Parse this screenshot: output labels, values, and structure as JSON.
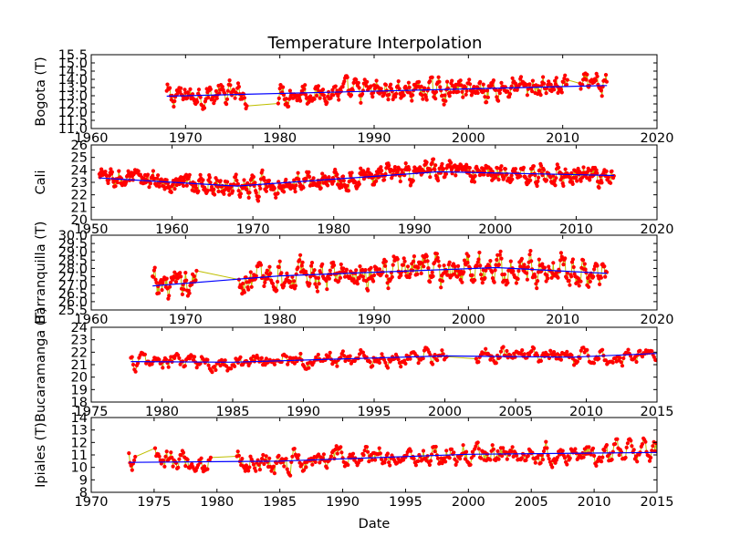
{
  "figure_title": "Temperature Interpolation",
  "chart_data": [
    {
      "type": "line",
      "ylabel": "Bogota (T)",
      "xlim": [
        1960,
        2020
      ],
      "ylim": [
        11.0,
        15.5
      ],
      "xticks": [
        1960,
        1970,
        1980,
        1990,
        2000,
        2010,
        2020
      ],
      "yticks": [
        11.0,
        11.5,
        12.0,
        12.5,
        13.0,
        13.5,
        14.0,
        14.5,
        15.0,
        15.5
      ],
      "ytick_labels": [
        "11.0",
        "11.5",
        "12.0",
        "12.5",
        "13.0",
        "13.5",
        "14.0",
        "14.5",
        "15.0",
        "15.5"
      ],
      "xtick_labels": [
        "1960",
        "1970",
        "1980",
        "1990",
        "2000",
        "2010",
        "2020"
      ],
      "data_range": [
        1968.0,
        2014.7
      ],
      "baseline": 13.1,
      "amplitude": 0.45,
      "min_val": 11.1,
      "max_val": 15.0,
      "gaps": [
        [
          1976.5,
          1979.8
        ],
        [
          2010.5,
          2011.8
        ]
      ],
      "trend": {
        "x": [
          1968.0,
          2014.7
        ],
        "y": [
          12.97,
          13.62
        ]
      },
      "colors": {
        "points": "#ff0000",
        "line": "#bfbf00",
        "trend": "#0000ff"
      }
    },
    {
      "type": "line",
      "ylabel": "Cali",
      "xlim": [
        1950,
        2020
      ],
      "ylim": [
        20,
        26
      ],
      "xticks": [
        1950,
        1960,
        1970,
        1980,
        1990,
        2000,
        2010,
        2020
      ],
      "yticks": [
        20,
        21,
        22,
        23,
        24,
        25,
        26
      ],
      "ytick_labels": [
        "20",
        "21",
        "22",
        "23",
        "24",
        "25",
        "26"
      ],
      "xtick_labels": [
        "1950",
        "1960",
        "1970",
        "1980",
        "1990",
        "2000",
        "2010",
        "2020"
      ],
      "data_range": [
        1951.0,
        2014.7
      ],
      "baseline": 23.2,
      "amplitude": 0.55,
      "min_val": 20.7,
      "max_val": 25.6,
      "gaps": [],
      "trend": {
        "x": [
          1951.0,
          1968.0,
          1993.0,
          2014.7
        ],
        "y": [
          23.35,
          22.7,
          23.85,
          23.55
        ]
      },
      "colors": {
        "points": "#ff0000",
        "line": "#bfbf00",
        "trend": "#0000ff"
      }
    },
    {
      "type": "line",
      "ylabel": "Barranquilla (T)",
      "xlim": [
        1960,
        2020
      ],
      "ylim": [
        25.5,
        30.0
      ],
      "xticks": [
        1960,
        1970,
        1980,
        1990,
        2000,
        2010,
        2020
      ],
      "yticks": [
        25.5,
        26.0,
        26.5,
        27.0,
        27.5,
        28.0,
        28.5,
        29.0,
        29.5,
        30.0
      ],
      "ytick_labels": [
        "25.5",
        "26.0",
        "26.5",
        "27.0",
        "27.5",
        "28.0",
        "28.5",
        "29.0",
        "29.5",
        "30.0"
      ],
      "xtick_labels": [
        "1960",
        "1970",
        "1980",
        "1990",
        "2000",
        "2010",
        "2020"
      ],
      "data_range": [
        1966.5,
        2014.7
      ],
      "baseline": 27.6,
      "amplitude": 0.6,
      "min_val": 25.6,
      "max_val": 29.7,
      "gaps": [
        [
          1971.2,
          1975.6
        ]
      ],
      "trend": {
        "x": [
          1966.5,
          1980.0,
          2003.0,
          2014.7
        ],
        "y": [
          26.95,
          27.55,
          28.05,
          27.7
        ]
      },
      "colors": {
        "points": "#ff0000",
        "line": "#bfbf00",
        "trend": "#0000ff"
      }
    },
    {
      "type": "line",
      "ylabel": "Bucaramanga (T)",
      "xlim": [
        1975,
        2015
      ],
      "ylim": [
        18,
        24
      ],
      "xticks": [
        1975,
        1980,
        1985,
        1990,
        1995,
        2000,
        2005,
        2010,
        2015
      ],
      "yticks": [
        18,
        19,
        20,
        21,
        22,
        23,
        24
      ],
      "ytick_labels": [
        "18",
        "19",
        "20",
        "21",
        "22",
        "23",
        "24"
      ],
      "xtick_labels": [
        "1975",
        "1980",
        "1985",
        "1990",
        "1995",
        "2000",
        "2005",
        "2010",
        "2015"
      ],
      "data_range": [
        1977.8,
        2015.0
      ],
      "baseline": 21.4,
      "amplitude": 0.45,
      "min_val": 19.2,
      "max_val": 23.6,
      "gaps": [
        [
          2000.2,
          2002.2
        ]
      ],
      "trend": {
        "x": [
          1977.8,
          1985.0,
          2000.0,
          2009.0,
          2015.0
        ],
        "y": [
          21.25,
          21.2,
          21.7,
          21.6,
          21.9
        ]
      },
      "colors": {
        "points": "#ff0000",
        "line": "#bfbf00",
        "trend": "#0000ff"
      }
    },
    {
      "type": "line",
      "ylabel": "Ipiales (T)",
      "xlabel": "Date",
      "xlim": [
        1970,
        2015
      ],
      "ylim": [
        8,
        14
      ],
      "xticks": [
        1970,
        1975,
        1980,
        1985,
        1990,
        1995,
        2000,
        2005,
        2010,
        2015
      ],
      "yticks": [
        8,
        9,
        10,
        11,
        12,
        13,
        14
      ],
      "ytick_labels": [
        "8",
        "9",
        "10",
        "11",
        "12",
        "13",
        "14"
      ],
      "xtick_labels": [
        "1970",
        "1975",
        "1980",
        "1985",
        "1990",
        "1995",
        "2000",
        "2005",
        "2010",
        "2015"
      ],
      "data_range": [
        1973.0,
        2015.0
      ],
      "baseline": 10.9,
      "amplitude": 0.6,
      "min_val": 8.5,
      "max_val": 13.2,
      "gaps": [
        [
          1973.5,
          1975.0
        ],
        [
          1979.5,
          1981.5
        ]
      ],
      "trend": {
        "x": [
          1973.0,
          1985.0,
          2000.0,
          2015.0
        ],
        "y": [
          10.4,
          10.5,
          11.05,
          11.2
        ]
      },
      "colors": {
        "points": "#ff0000",
        "line": "#bfbf00",
        "trend": "#0000ff"
      }
    }
  ]
}
